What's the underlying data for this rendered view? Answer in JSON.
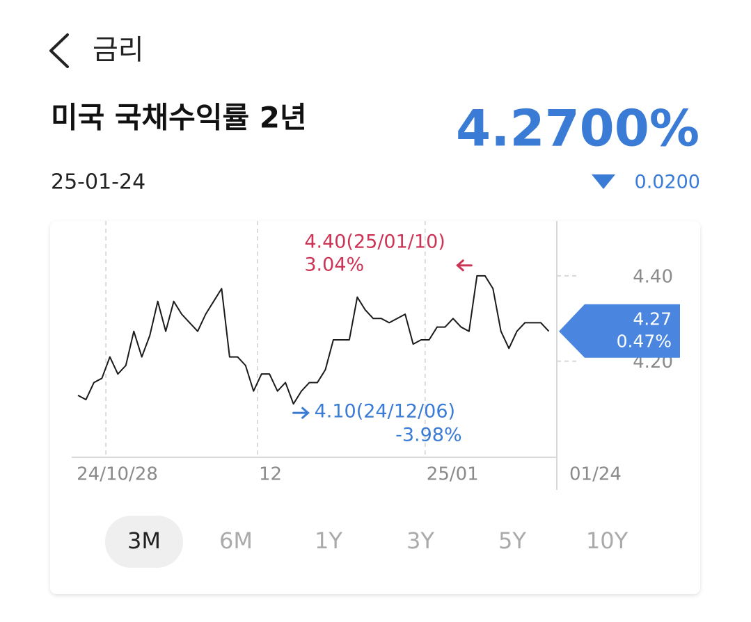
{
  "header": {
    "nav_title": "금리",
    "title": "미국 국채수익률 2년",
    "price": "4.2700%",
    "date": "25-01-24",
    "change": "0.0200"
  },
  "chart_data": {
    "type": "line",
    "color": "#1a1a1a",
    "values": [
      4.12,
      4.11,
      4.15,
      4.16,
      4.21,
      4.17,
      4.19,
      4.27,
      4.21,
      4.26,
      4.34,
      4.27,
      4.34,
      4.31,
      4.29,
      4.27,
      4.31,
      4.34,
      4.37,
      4.21,
      4.21,
      4.19,
      4.13,
      4.17,
      4.17,
      4.13,
      4.15,
      4.1,
      4.13,
      4.15,
      4.15,
      4.18,
      4.25,
      4.25,
      4.25,
      4.35,
      4.32,
      4.3,
      4.3,
      4.29,
      4.3,
      4.31,
      4.24,
      4.25,
      4.25,
      4.28,
      4.28,
      4.3,
      4.28,
      4.27,
      4.4,
      4.4,
      4.37,
      4.27,
      4.23,
      4.27,
      4.29,
      4.29,
      4.29,
      4.27
    ],
    "xlim": [
      0,
      60
    ],
    "ylim": [
      3.975,
      4.525
    ],
    "xticks": [
      {
        "value": 3.5,
        "label": "24/10/28"
      },
      {
        "value": 22.5,
        "label": "12"
      },
      {
        "value": 43.5,
        "label": "25/01"
      },
      {
        "value": 60,
        "label": "01/24"
      }
    ],
    "yticks": [
      {
        "value": 4.4,
        "label": "4.40"
      },
      {
        "value": 4.2,
        "label": "4.20"
      }
    ],
    "grid": true,
    "max_annotation": {
      "line1": "4.40(25/01/10)",
      "line2": "3.04%",
      "color": "#cc3355"
    },
    "min_annotation": {
      "line1": "4.10(24/12/06)",
      "line2": "-3.98%",
      "color": "#3a7bd5"
    },
    "last_tag": {
      "line1": "4.27",
      "line2": "0.47%",
      "color": "#4a86e0"
    }
  },
  "periods": {
    "options": [
      "3M",
      "6M",
      "1Y",
      "3Y",
      "5Y",
      "10Y"
    ],
    "selected": 0
  }
}
